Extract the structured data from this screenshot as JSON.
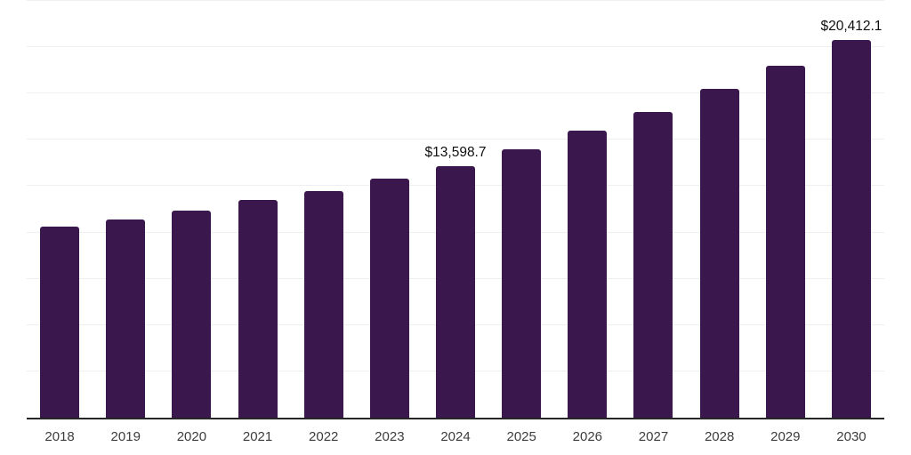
{
  "chart_data": {
    "type": "bar",
    "title": "",
    "xlabel": "",
    "ylabel": "",
    "categories": [
      "2018",
      "2019",
      "2020",
      "2021",
      "2022",
      "2023",
      "2024",
      "2025",
      "2026",
      "2027",
      "2028",
      "2029",
      "2030"
    ],
    "values": [
      10330,
      10715,
      11170,
      11745,
      12255,
      12895,
      13598.7,
      14485,
      15490,
      16480,
      17730,
      19010,
      20412.1
    ],
    "point_labels": [
      null,
      null,
      null,
      null,
      null,
      null,
      "$13,598.7",
      null,
      null,
      null,
      null,
      null,
      "$20,412.1"
    ],
    "ylim": [
      0,
      22500
    ],
    "grid_step": 2500,
    "grid": true,
    "legend": false,
    "bar_color": "#3A184D"
  },
  "colors": {
    "background": "#ffffff",
    "bar": "#3A184D",
    "gridline": "#efefef",
    "axis_line": "#262626",
    "tick_label": "#3d3d3d",
    "data_label": "#0f0f0f"
  }
}
